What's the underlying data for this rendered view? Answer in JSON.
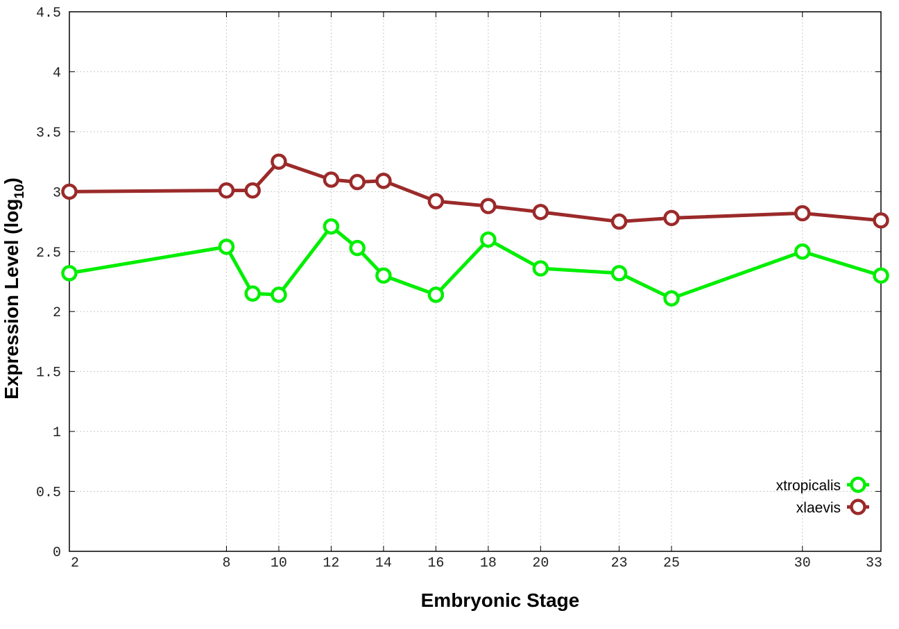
{
  "chart_data": {
    "type": "line",
    "xlabel": "Embryonic Stage",
    "ylabel": "Expression Level (log",
    "ylabel_subscript": "10",
    "ylabel_suffix": ")",
    "xlim": [
      2,
      33
    ],
    "ylim": [
      0,
      4.5
    ],
    "x_ticks": [
      2,
      8,
      10,
      12,
      14,
      16,
      18,
      20,
      23,
      25,
      30,
      33
    ],
    "y_ticks": [
      0,
      0.5,
      1,
      1.5,
      2,
      2.5,
      3,
      3.5,
      4,
      4.5
    ],
    "y_tick_labels": [
      "0",
      "0.5",
      "1",
      "1.5",
      "2",
      "2.5",
      "3",
      "3.5",
      "4",
      "4.5"
    ],
    "grid": true,
    "legend_position": "bottom-right",
    "x": [
      2,
      8,
      9,
      10,
      12,
      13,
      14,
      16,
      18,
      20,
      23,
      25,
      30,
      33
    ],
    "series": [
      {
        "name": "xtropicalis",
        "color": "#00ee00",
        "values": [
          2.32,
          2.54,
          2.15,
          2.14,
          2.71,
          2.53,
          2.3,
          2.14,
          2.6,
          2.36,
          2.32,
          2.11,
          2.5,
          2.3
        ]
      },
      {
        "name": "xlaevis",
        "color": "#9b2a2a",
        "values": [
          3.0,
          3.01,
          3.01,
          3.25,
          3.1,
          3.08,
          3.09,
          2.92,
          2.88,
          2.83,
          2.75,
          2.78,
          2.82,
          2.76
        ]
      }
    ]
  }
}
